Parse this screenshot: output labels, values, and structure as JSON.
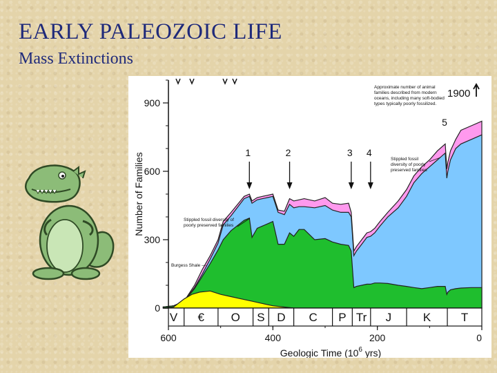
{
  "title": "EARLY PALEOZOIC LIFE",
  "subtitle": "Mass Extinctions",
  "chart_data": {
    "type": "area",
    "title": "",
    "xlabel_main": "Geologic Time (10",
    "xlabel_exp": "6",
    "xlabel_tail": " yrs)",
    "ylabel": "Number of Families",
    "xlim": [
      600,
      0
    ],
    "ylim": [
      0,
      1000
    ],
    "x_ticks": [
      {
        "value": 600,
        "label": "600"
      },
      {
        "value": 400,
        "label": "400"
      },
      {
        "value": 200,
        "label": "200"
      },
      {
        "value": 0,
        "label": "0"
      }
    ],
    "y_ticks": [
      {
        "value": 0,
        "label": "0"
      },
      {
        "value": 300,
        "label": "300"
      },
      {
        "value": 600,
        "label": "600"
      },
      {
        "value": 900,
        "label": "900"
      }
    ],
    "periods": [
      {
        "label": "V",
        "start": 610,
        "end": 570
      },
      {
        "label": "€",
        "start": 570,
        "end": 505
      },
      {
        "label": "O",
        "start": 505,
        "end": 438
      },
      {
        "label": "S",
        "start": 438,
        "end": 408
      },
      {
        "label": "D",
        "start": 408,
        "end": 360
      },
      {
        "label": "C",
        "start": 360,
        "end": 286
      },
      {
        "label": "P",
        "start": 286,
        "end": 248
      },
      {
        "label": "Tr",
        "start": 248,
        "end": 213
      },
      {
        "label": "J",
        "start": 213,
        "end": 144
      },
      {
        "label": "K",
        "start": 144,
        "end": 66
      },
      {
        "label": "T",
        "start": 66,
        "end": 0
      }
    ],
    "series": [
      {
        "color": "#ff99ee",
        "x": [
          610,
          590,
          570,
          550,
          535,
          520,
          505,
          495,
          480,
          455,
          445,
          440,
          430,
          420,
          410,
          400,
          390,
          378,
          368,
          360,
          350,
          340,
          320,
          300,
          286,
          270,
          255,
          250,
          245,
          240,
          230,
          220,
          213,
          205,
          195,
          180,
          160,
          144,
          130,
          115,
          100,
          85,
          70,
          67,
          65,
          60,
          50,
          40,
          20,
          0
        ],
        "y": [
          5,
          10,
          30,
          100,
          170,
          230,
          300,
          380,
          420,
          490,
          500,
          470,
          485,
          490,
          495,
          500,
          430,
          425,
          480,
          470,
          475,
          480,
          470,
          485,
          460,
          455,
          460,
          420,
          250,
          270,
          300,
          330,
          335,
          350,
          380,
          420,
          470,
          520,
          580,
          620,
          650,
          690,
          720,
          610,
          640,
          690,
          740,
          780,
          800,
          820
        ]
      },
      {
        "color": "#7ec8ff",
        "x": [
          610,
          590,
          570,
          550,
          535,
          520,
          505,
          495,
          480,
          455,
          445,
          440,
          430,
          420,
          410,
          400,
          390,
          378,
          368,
          360,
          350,
          340,
          320,
          300,
          286,
          270,
          255,
          250,
          245,
          240,
          230,
          220,
          213,
          205,
          195,
          180,
          160,
          144,
          130,
          115,
          100,
          85,
          70,
          67,
          65,
          60,
          50,
          40,
          20,
          0
        ],
        "y": [
          5,
          10,
          30,
          90,
          150,
          215,
          285,
          365,
          405,
          480,
          490,
          460,
          475,
          480,
          485,
          490,
          420,
          410,
          455,
          440,
          445,
          445,
          440,
          450,
          430,
          420,
          420,
          400,
          230,
          250,
          280,
          310,
          315,
          330,
          360,
          400,
          440,
          490,
          550,
          590,
          620,
          650,
          680,
          570,
          600,
          650,
          700,
          720,
          740,
          760
        ]
      },
      {
        "color": "#1fbe2e",
        "x": [
          610,
          590,
          570,
          550,
          535,
          520,
          505,
          495,
          480,
          455,
          445,
          440,
          430,
          420,
          410,
          400,
          390,
          378,
          368,
          360,
          350,
          340,
          320,
          300,
          286,
          270,
          255,
          250,
          245,
          240,
          230,
          220,
          213,
          205,
          195,
          180,
          160,
          144,
          130,
          115,
          100,
          85,
          70,
          67,
          65,
          60,
          50,
          40,
          20,
          0
        ],
        "y": [
          5,
          10,
          30,
          85,
          140,
          195,
          255,
          300,
          340,
          385,
          395,
          310,
          350,
          360,
          370,
          380,
          280,
          280,
          330,
          315,
          345,
          345,
          300,
          305,
          290,
          280,
          275,
          250,
          90,
          95,
          100,
          105,
          105,
          110,
          110,
          108,
          100,
          95,
          90,
          85,
          90,
          95,
          95,
          60,
          70,
          80,
          85,
          88,
          90,
          90
        ]
      },
      {
        "color": "#ffff00",
        "x": [
          610,
          590,
          570,
          555,
          540,
          520,
          500,
          480,
          460,
          440,
          420,
          400,
          380,
          360
        ],
        "y": [
          0,
          5,
          40,
          60,
          70,
          75,
          60,
          50,
          40,
          30,
          20,
          10,
          5,
          0
        ]
      }
    ],
    "extinctions": [
      {
        "label": "1",
        "age": 445
      },
      {
        "label": "2",
        "age": 368
      },
      {
        "label": "3",
        "age": 250
      },
      {
        "label": "4",
        "age": 213
      },
      {
        "label": "5",
        "age": 66
      }
    ],
    "annotations": [
      "Approximate number of animal families described from modern oceans, including many soft-bodied types typically poorly fossilized.",
      "1900",
      "Stippled fossil diversity of poorly preserved families",
      "Stippled fossil diversity of poorly preserved families",
      "Burgess Shale"
    ]
  }
}
